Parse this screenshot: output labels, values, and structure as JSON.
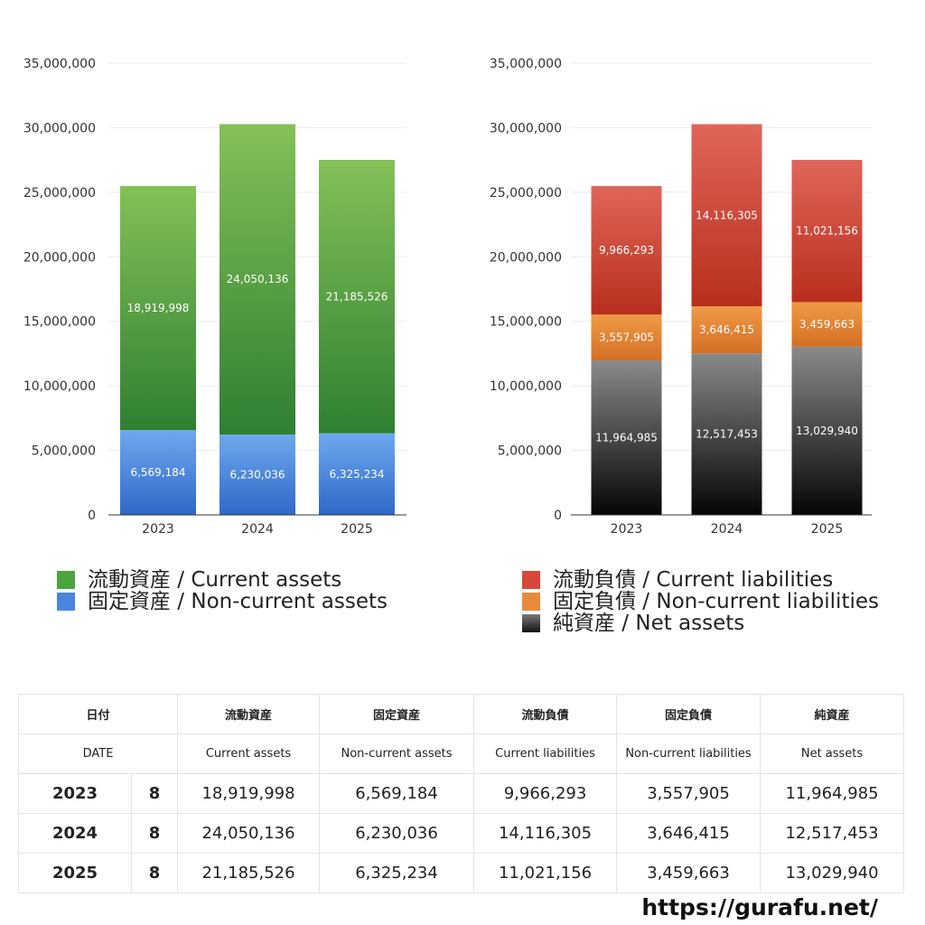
{
  "chart_data": [
    {
      "type": "bar",
      "stacked": true,
      "categories": [
        "2023",
        "2024",
        "2025"
      ],
      "ylim": [
        0,
        35000000
      ],
      "yticks": [
        "0",
        "5,000,000",
        "10,000,000",
        "15,000,000",
        "20,000,000",
        "25,000,000",
        "30,000,000",
        "35,000,000"
      ],
      "grid": true,
      "series": [
        {
          "name": "固定資産 / Non-current assets",
          "values": [
            6569184,
            6230036,
            6325234
          ],
          "labels": [
            "6,569,184",
            "6,230,036",
            "6,325,234"
          ],
          "color_top": "#6ea9ee",
          "color_bottom": "#2f68c8"
        },
        {
          "name": "流動資産 / Current assets",
          "values": [
            18919998,
            24050136,
            21185526
          ],
          "labels": [
            "18,919,998",
            "24,050,136",
            "21,185,526"
          ],
          "color_top": "#84c157",
          "color_bottom": "#2f7f32"
        }
      ],
      "legend": [
        "流動資産 / Current assets",
        "固定資産 / Non-current assets"
      ],
      "legend_colors": [
        "#4aa43f",
        "#4a86dd"
      ]
    },
    {
      "type": "bar",
      "stacked": true,
      "categories": [
        "2023",
        "2024",
        "2025"
      ],
      "ylim": [
        0,
        35000000
      ],
      "yticks": [
        "0",
        "5,000,000",
        "10,000,000",
        "15,000,000",
        "20,000,000",
        "25,000,000",
        "30,000,000",
        "35,000,000"
      ],
      "grid": true,
      "series": [
        {
          "name": "純資産 / Net assets",
          "values": [
            11964985,
            12517453,
            13029940
          ],
          "labels": [
            "11,964,985",
            "12,517,453",
            "13,029,940"
          ],
          "color_top": "#8a8a8a",
          "color_bottom": "#050505"
        },
        {
          "name": "固定負債 / Non-current liabilities",
          "values": [
            3557905,
            3646415,
            3459663
          ],
          "labels": [
            "3,557,905",
            "3,646,415",
            "3,459,663"
          ],
          "color_top": "#ef9a45",
          "color_bottom": "#d46f25"
        },
        {
          "name": "流動負債 / Current liabilities",
          "values": [
            9966293,
            14116305,
            11021156
          ],
          "labels": [
            "9,966,293",
            "14,116,305",
            "11,021,156"
          ],
          "color_top": "#e0665a",
          "color_bottom": "#b82e1d"
        }
      ],
      "legend": [
        "流動負債 / Current liabilities",
        "固定負債 / Non-current liabilities",
        "純資産 / Net assets"
      ],
      "legend_colors": [
        "#d9463a",
        "#e88a3a",
        "#333333"
      ]
    }
  ],
  "table": {
    "header_jp": [
      "日付",
      "流動資産",
      "固定資産",
      "流動負債",
      "固定負債",
      "純資産"
    ],
    "header_en": [
      "DATE",
      "Current assets",
      "Non-current assets",
      "Current liabilities",
      "Non-current liabilities",
      "Net assets"
    ],
    "rows": [
      {
        "year": "2023",
        "count": "8",
        "ca": "18,919,998",
        "nca": "6,569,184",
        "cl": "9,966,293",
        "ncl": "3,557,905",
        "na": "11,964,985"
      },
      {
        "year": "2024",
        "count": "8",
        "ca": "24,050,136",
        "nca": "6,230,036",
        "cl": "14,116,305",
        "ncl": "3,646,415",
        "na": "12,517,453"
      },
      {
        "year": "2025",
        "count": "8",
        "ca": "21,185,526",
        "nca": "6,325,234",
        "cl": "11,021,156",
        "ncl": "3,459,663",
        "na": "13,029,940"
      }
    ]
  },
  "site_url": "https://gurafu.net/"
}
